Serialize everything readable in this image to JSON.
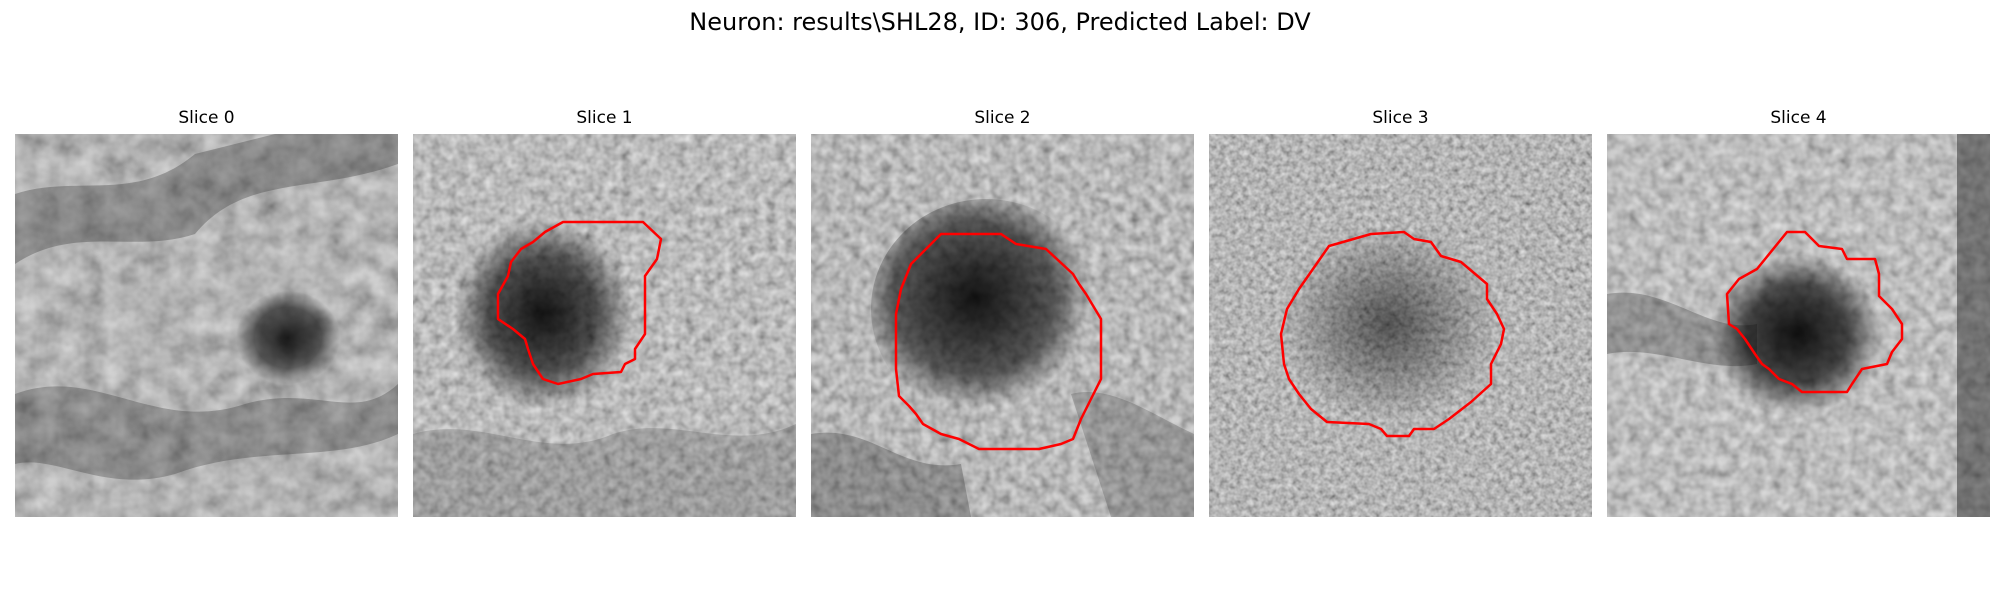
{
  "figure": {
    "title": "Neuron: results\\SHL28, ID: 306, Predicted Label: DV",
    "contour_color": "#ff0000"
  },
  "panels": [
    {
      "title": "Slice 0",
      "has_contour": false
    },
    {
      "title": "Slice 1",
      "has_contour": true
    },
    {
      "title": "Slice 2",
      "has_contour": true
    },
    {
      "title": "Slice 3",
      "has_contour": true
    },
    {
      "title": "Slice 4",
      "has_contour": true
    }
  ]
}
